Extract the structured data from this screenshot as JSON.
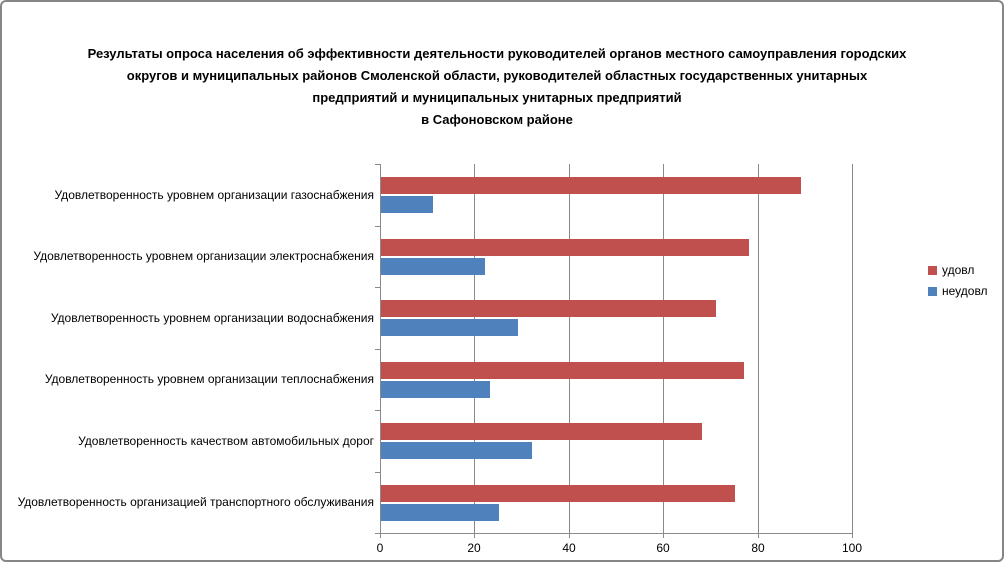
{
  "chart": {
    "title_lines": [
      "Результаты опроса населения об эффективности деятельности руководителей органов местного самоуправления городских",
      "округов и муниципальных районов Смоленской области, руководителей областных государственных унитарных",
      "предприятий и муниципальных унитарных предприятий",
      "в Сафоновском районе"
    ]
  },
  "chart_data": {
    "type": "bar",
    "orientation": "horizontal",
    "title": "Результаты опроса населения об эффективности деятельности руководителей органов местного самоуправления городских округов и муниципальных районов Смоленской области, руководителей областных государственных унитарных предприятий и муниципальных унитарных предприятий в Сафоновском районе",
    "categories": [
      "Удовлетворенность уровнем организации газоснабжения",
      "Удовлетворенность уровнем организации электроснабжения",
      "Удовлетворенность уровнем организации водоснабжения",
      "Удовлетворенность уровнем организации теплоснабжения",
      "Удовлетворенность качеством автомобильных дорог",
      "Удовлетворенность организацией транспортного обслуживания"
    ],
    "series": [
      {
        "name": "удовл",
        "key": "udovl",
        "color": "#C0504D",
        "values": [
          89,
          78,
          71,
          77,
          68,
          75
        ]
      },
      {
        "name": "неудовл",
        "key": "neudovl",
        "color": "#4F81BD",
        "values": [
          11,
          22,
          29,
          23,
          32,
          25
        ]
      }
    ],
    "xlim": [
      0,
      100
    ],
    "xticks": [
      0,
      20,
      40,
      60,
      80,
      100
    ],
    "grid": "vertical",
    "legend_position": "right",
    "colors": {
      "grid": "#8A8A8A",
      "axis": "#8A8A8A",
      "text": "#000000",
      "frame_border": "#868686"
    }
  }
}
